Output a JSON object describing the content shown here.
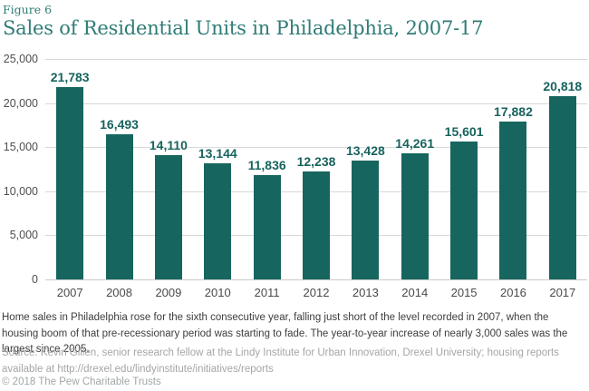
{
  "figure_label": "Figure 6",
  "title": "Sales of Residential Units in Philadelphia, 2007-17",
  "chart_data": {
    "type": "bar",
    "title": "Sales of Residential Units in Philadelphia, 2007-17",
    "categories": [
      "2007",
      "2008",
      "2009",
      "2010",
      "2011",
      "2012",
      "2013",
      "2014",
      "2015",
      "2016",
      "2017"
    ],
    "values": [
      21783,
      16493,
      14110,
      13144,
      11836,
      12238,
      13428,
      14261,
      15601,
      17882,
      20818
    ],
    "value_labels": [
      "21,783",
      "16,493",
      "14,110",
      "13,144",
      "11,836",
      "12,238",
      "13,428",
      "14,261",
      "15,601",
      "17,882",
      "20,818"
    ],
    "xlabel": "",
    "ylabel": "",
    "ylim": [
      0,
      25000
    ],
    "y_tick_values": [
      0,
      5000,
      10000,
      15000,
      20000,
      25000
    ],
    "y_tick_labels": [
      "0",
      "5,000",
      "10,000",
      "15,000",
      "20,000",
      "25,000"
    ],
    "grid": true,
    "legend": false,
    "bar_color": "#17655f",
    "value_label_color": "#18635e",
    "gridline_color": "#d7d7d7"
  },
  "caption": "Home sales in Philadelphia rose for the sixth consecutive year, falling just short of the level recorded in 2007, when the housing boom of that pre-recessionary period was starting to fade. The year-to-year increase of nearly 3,000 sales was the largest since 2005.",
  "source": "Source: Kevin Gillen, senior research fellow at the Lindy Institute for Urban Innovation, Drexel University; housing reports available at http://drexel.edu/lindyinstitute/initiatives/reports",
  "copyright": "© 2018 The Pew Charitable Trusts",
  "colors": {
    "accent_teal": "#17655f",
    "title_teal": "#2f7c76",
    "axis_text": "#4a4a4a",
    "muted_text": "#a3a6a8",
    "body_text": "#3d3d3d"
  }
}
